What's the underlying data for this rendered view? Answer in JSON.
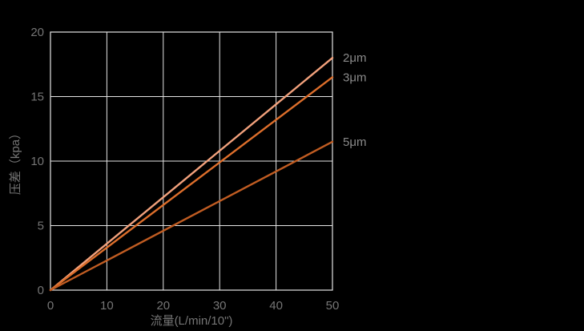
{
  "page": {
    "background": "#000000"
  },
  "chart_data": {
    "type": "line",
    "title": "",
    "xlabel": "流量(L/min/10\")",
    "ylabel": "压差（kpa）",
    "xlim": [
      0,
      50
    ],
    "ylim": [
      0,
      20
    ],
    "xticks": [
      0,
      10,
      20,
      30,
      40,
      50
    ],
    "yticks": [
      0,
      5,
      10,
      15,
      20
    ],
    "grid": true,
    "legend_position": "labels-at-line-ends-right",
    "series": [
      {
        "name": "2μm",
        "color": "#f2a17c",
        "x": [
          0,
          50
        ],
        "y": [
          0,
          18
        ]
      },
      {
        "name": "3μm",
        "color": "#dd6e2b",
        "x": [
          0,
          50
        ],
        "y": [
          0,
          16.5
        ]
      },
      {
        "name": "5μm",
        "color": "#c05c22",
        "x": [
          0,
          50
        ],
        "y": [
          0,
          11.5
        ]
      }
    ],
    "colors": {
      "background": "#000000",
      "grid": "#e4e4e4",
      "tick_text": "#757575",
      "axis_label_text": "#757575",
      "series_label_text": "#8a8a8a"
    }
  }
}
